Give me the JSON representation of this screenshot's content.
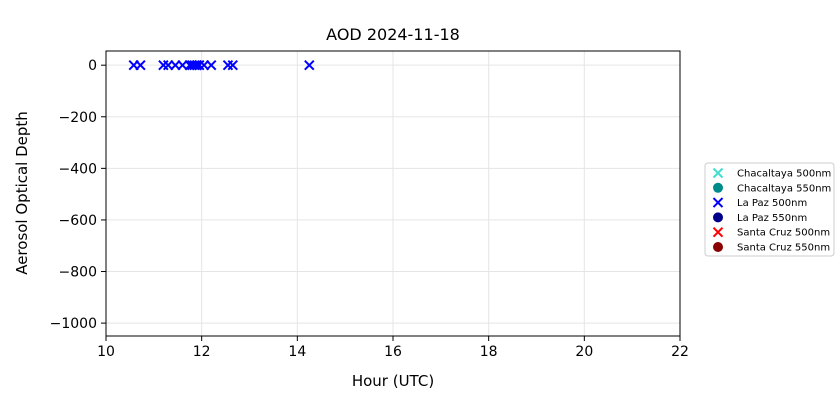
{
  "chart_data": {
    "type": "scatter",
    "title": "AOD 2024-11-18",
    "xlabel": "Hour (UTC)",
    "ylabel": "Aerosol Optical Depth",
    "xlim": [
      10,
      22
    ],
    "ylim": [
      -1050,
      55
    ],
    "xticks": [
      10,
      12,
      14,
      16,
      18,
      20,
      22
    ],
    "yticks": [
      0,
      -200,
      -400,
      -600,
      -800,
      -1000
    ],
    "xtick_labels": [
      "10",
      "12",
      "14",
      "16",
      "18",
      "20",
      "22"
    ],
    "ytick_labels": [
      "0",
      "−200",
      "−400",
      "−600",
      "−800",
      "−1000"
    ],
    "grid": true,
    "legend_position": "right, outside plot",
    "series": [
      {
        "name": "Chacaltaya 500nm",
        "marker": "x",
        "color": "#40E0D0",
        "x": [],
        "y": []
      },
      {
        "name": "Chacaltaya 550nm",
        "marker": "o",
        "color": "#008B8B",
        "x": [],
        "y": []
      },
      {
        "name": "La Paz 500nm",
        "marker": "x",
        "color": "#0000FF",
        "x": [
          10.58,
          10.72,
          11.2,
          11.3,
          11.45,
          11.6,
          11.75,
          11.8,
          11.85,
          11.9,
          11.95,
          12.05,
          12.2,
          12.55,
          12.65,
          14.25
        ],
        "y": [
          0,
          0,
          0,
          0,
          0,
          0,
          0,
          0,
          0,
          0,
          0,
          0,
          0,
          0,
          0,
          0
        ]
      },
      {
        "name": "La Paz 550nm",
        "marker": "o",
        "color": "#00008B",
        "x": [],
        "y": []
      },
      {
        "name": "Santa Cruz 500nm",
        "marker": "x",
        "color": "#FF0000",
        "x": [],
        "y": []
      },
      {
        "name": "Santa Cruz 550nm",
        "marker": "o",
        "color": "#8B0000",
        "x": [],
        "y": []
      }
    ]
  }
}
